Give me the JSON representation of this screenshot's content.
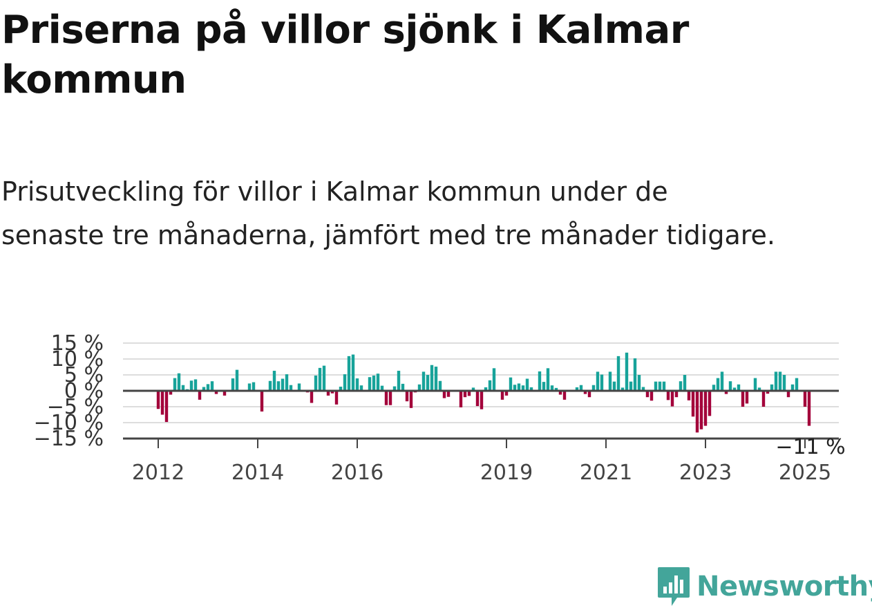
{
  "title": "Priserna på villor sjönk i Kalmar kommun",
  "subtitle": "Prisutveckling för villor i Kalmar kommun under de senaste tre månaderna, jämfört med tre månader tidigare.",
  "brand": {
    "name": "Newsworthy",
    "color": "#43a59a",
    "icon": "bar-chart-speech-bubble-icon"
  },
  "colors": {
    "positive": "#17a39a",
    "negative": "#a3003a",
    "grid": "#dddddd",
    "axis": "#444444"
  },
  "chart_data": {
    "type": "bar",
    "ylim": [
      -15,
      15
    ],
    "yticks": [
      15,
      10,
      5,
      0,
      -5,
      -10,
      -15
    ],
    "ytick_labels": [
      "15 %",
      "10 %",
      "5 %",
      "0 %",
      "−5 %",
      "−10 %",
      "−15 %"
    ],
    "xticks": [
      {
        "label": "2012",
        "index": 0
      },
      {
        "label": "2014",
        "index": 24
      },
      {
        "label": "2016",
        "index": 48
      },
      {
        "label": "2019",
        "index": 84
      },
      {
        "label": "2021",
        "index": 108
      },
      {
        "label": "2023",
        "index": 132
      },
      {
        "label": "2025",
        "index": 156
      }
    ],
    "last_value_label": "−11 %",
    "grid": true,
    "values": [
      -5.7,
      -7.5,
      -9.8,
      -1.2,
      4.0,
      5.5,
      1.8,
      0.5,
      3.2,
      3.6,
      -2.8,
      1.2,
      2.1,
      3.0,
      -1.0,
      0.3,
      -1.5,
      0.2,
      3.9,
      6.6,
      0.2,
      0.1,
      2.3,
      2.7,
      0.1,
      -6.5,
      0.2,
      3.1,
      6.3,
      3.0,
      3.8,
      5.2,
      1.8,
      0.1,
      2.3,
      0.1,
      -0.5,
      -3.8,
      4.8,
      7.2,
      7.9,
      -1.5,
      -0.8,
      -4.3,
      1.3,
      5.2,
      10.9,
      11.4,
      3.9,
      1.7,
      0.1,
      4.3,
      4.8,
      5.4,
      1.6,
      -4.5,
      -4.5,
      1.4,
      6.3,
      2.2,
      -3.3,
      -5.4,
      -0.5,
      2.0,
      6.0,
      5.0,
      8.1,
      7.6,
      3.1,
      -2.3,
      -1.9,
      0.1,
      -0.2,
      -5.2,
      -2.0,
      -1.6,
      1.0,
      -4.8,
      -5.8,
      1.1,
      3.3,
      7.1,
      -0.1,
      -2.8,
      -1.5,
      4.2,
      1.9,
      2.3,
      1.7,
      3.8,
      1.1,
      0.1,
      6.1,
      2.8,
      7.1,
      1.7,
      0.9,
      -1.2,
      -2.8,
      -0.3,
      0.1,
      1.1,
      1.8,
      -1.0,
      -2.0,
      1.8,
      6.0,
      5.1,
      0.1,
      6.0,
      2.9,
      10.9,
      1.0,
      12.0,
      2.9,
      10.2,
      5.0,
      1.2,
      -2.0,
      -3.1,
      2.9,
      2.9,
      2.9,
      -2.9,
      -4.9,
      -2.0,
      3.0,
      5.0,
      -3.0,
      -8.1,
      -13.1,
      -12.1,
      -11.0,
      -7.9,
      1.9,
      4.0,
      6.0,
      -1.0,
      3.0,
      1.0,
      2.0,
      -5.0,
      -4.0,
      -0.3,
      4.0,
      1.0,
      -5.0,
      -0.9,
      2.0,
      6.0,
      6.0,
      5.0,
      -2.0,
      2.0,
      4.0,
      0.1,
      -5.0,
      -11.0
    ]
  }
}
